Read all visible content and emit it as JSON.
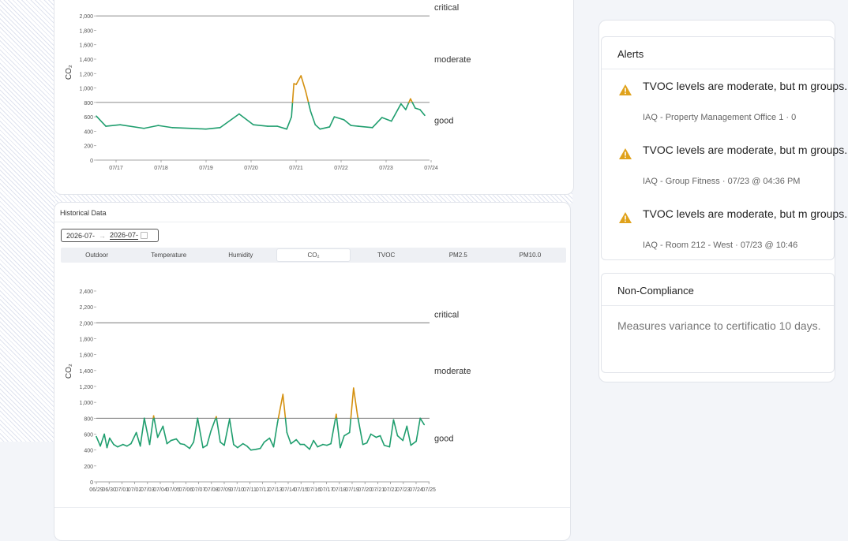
{
  "top_chart": {
    "ylabel": "CO₂",
    "ylim": [
      0,
      2100
    ],
    "yticks": [
      "0",
      "200",
      "400",
      "600",
      "800",
      "1,000",
      "1,200",
      "1,400",
      "1,600",
      "1,800",
      "2,000"
    ],
    "xticks": [
      "07/17",
      "07/18",
      "07/19",
      "07/20",
      "07/21",
      "07/22",
      "07/23",
      "07/24"
    ],
    "thresholds": [
      {
        "label": "critical",
        "value": 2000
      },
      {
        "label": "moderate",
        "value": 1400
      },
      {
        "label": "good",
        "value": 800
      }
    ]
  },
  "historical": {
    "title": "Historical Data",
    "date_start": "2026-07-",
    "date_end": "2026-07-",
    "date_arrow": "→",
    "tabs": [
      "Outdoor",
      "Temperature",
      "Humidity",
      "CO₂",
      "TVOC",
      "PM2.5",
      "PM10.0"
    ],
    "active_tab": "CO₂"
  },
  "bottom_chart": {
    "ylabel": "CO₂",
    "ylim": [
      0,
      2400
    ],
    "yticks": [
      "0",
      "200",
      "400",
      "600",
      "800",
      "1,000",
      "1,200",
      "1,400",
      "1,600",
      "1,800",
      "2,000",
      "2,200",
      "2,400"
    ],
    "xticks": [
      "06/29",
      "06/30",
      "07/01",
      "07/02",
      "07/03",
      "07/04",
      "07/05",
      "07/06",
      "07/07",
      "07/08",
      "07/09",
      "07/10",
      "07/11",
      "07/12",
      "07/13",
      "07/14",
      "07/15",
      "07/16",
      "07/17",
      "07/18",
      "07/19",
      "07/20",
      "07/21",
      "07/22",
      "07/23",
      "07/24",
      "07/25"
    ],
    "thresholds": [
      {
        "label": "critical",
        "value": 2000
      },
      {
        "label": "moderate",
        "value": 1400
      },
      {
        "label": "good",
        "value": 800
      }
    ]
  },
  "chart_data": [
    {
      "type": "line",
      "ylabel": "CO₂",
      "ylim": [
        0,
        2100
      ],
      "x": [
        0,
        0.2,
        0.5,
        1,
        1.3,
        1.6,
        2,
        2.3,
        2.6,
        3,
        3.3,
        3.6,
        3.8,
        4,
        4.1,
        4.15,
        4.2,
        4.3,
        4.4,
        4.5,
        4.6,
        4.7,
        4.9,
        5,
        5.2,
        5.35,
        5.5,
        5.8,
        6,
        6.2,
        6.4,
        6.5,
        6.6,
        6.7,
        6.8,
        6.9
      ],
      "series": [
        {
          "values": [
            610,
            470,
            490,
            440,
            480,
            450,
            440,
            430,
            450,
            640,
            490,
            470,
            470,
            430,
            600,
            1060,
            1050,
            1170,
            950,
            680,
            490,
            430,
            460,
            600,
            560,
            480,
            470,
            450,
            590,
            540,
            780,
            700,
            850,
            720,
            700,
            620
          ]
        }
      ],
      "moderate_threshold": 800,
      "colors": {
        "good": "#1f9e6e",
        "above": "#d4900f",
        "threshold": "#666666"
      }
    },
    {
      "type": "line",
      "ylabel": "CO₂",
      "ylim": [
        0,
        2400
      ],
      "x": [
        0,
        0.3,
        0.6,
        0.8,
        1,
        1.3,
        1.6,
        2,
        2.3,
        2.6,
        3,
        3.3,
        3.6,
        4,
        4.3,
        4.6,
        5,
        5.3,
        5.6,
        6,
        6.3,
        6.6,
        7,
        7.3,
        7.6,
        8,
        8.3,
        8.6,
        9,
        9.3,
        9.6,
        10,
        10.3,
        10.6,
        11,
        11.3,
        11.6,
        12,
        12.3,
        12.6,
        13,
        13.3,
        13.6,
        14,
        14.3,
        14.6,
        15,
        15.3,
        15.6,
        16,
        16.3,
        16.6,
        17,
        17.3,
        17.6,
        18,
        18.3,
        18.6,
        19,
        19.3,
        19.6,
        20,
        20.3,
        20.6,
        21,
        21.3,
        21.6,
        22,
        22.3,
        22.6,
        23,
        23.3,
        23.6,
        24,
        24.3,
        24.6
      ],
      "series": [
        {
          "values": [
            570,
            450,
            600,
            430,
            550,
            470,
            440,
            470,
            450,
            480,
            620,
            450,
            800,
            470,
            830,
            560,
            700,
            480,
            520,
            540,
            480,
            470,
            420,
            500,
            800,
            430,
            460,
            640,
            820,
            500,
            460,
            790,
            470,
            430,
            480,
            450,
            400,
            410,
            420,
            500,
            550,
            440,
            750,
            1100,
            620,
            480,
            530,
            470,
            470,
            410,
            520,
            440,
            470,
            460,
            480,
            850,
            430,
            580,
            620,
            1180,
            830,
            470,
            490,
            600,
            560,
            580,
            460,
            440,
            780,
            580,
            520,
            700,
            460,
            510,
            800,
            720
          ]
        }
      ],
      "moderate_threshold": 800,
      "colors": {
        "good": "#1f9e6e",
        "above": "#d4900f",
        "threshold": "#666666"
      }
    }
  ],
  "alerts": {
    "title": "Alerts",
    "items": [
      {
        "title": "TVOC levels are moderate, but m groups.",
        "meta": "IAQ - Property Management Office 1 · 0"
      },
      {
        "title": "TVOC levels are moderate, but m groups.",
        "meta": "IAQ - Group Fitness · 07/23 @ 04:36 PM"
      },
      {
        "title": "TVOC levels are moderate, but m groups.",
        "meta": "IAQ - Room 212 - West · 07/23 @ 10:46"
      }
    ],
    "warn_color": "#e0a21b"
  },
  "non_compliance": {
    "title": "Non-Compliance",
    "text": "Measures variance to certificatio 10 days."
  }
}
